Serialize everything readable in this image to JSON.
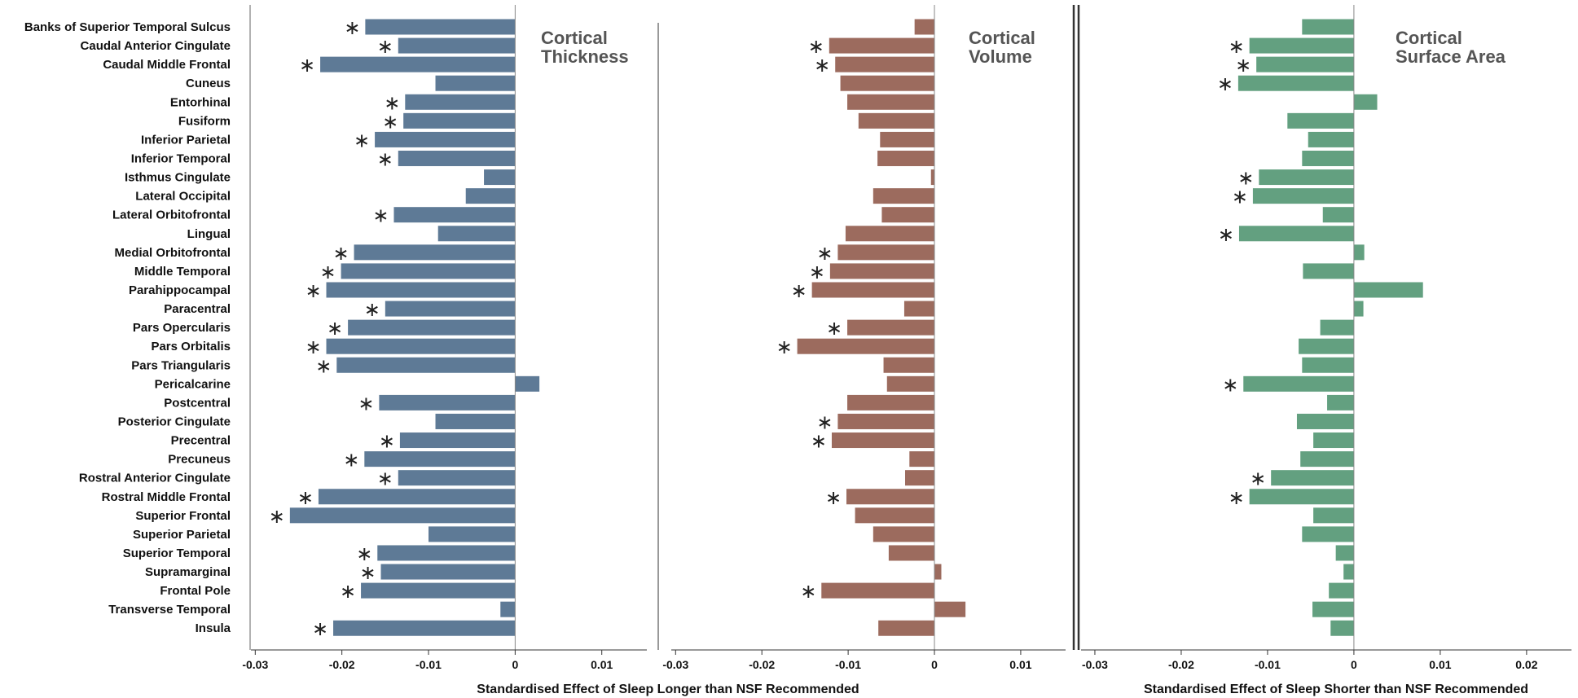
{
  "chart_data": {
    "type": "bar",
    "orientation": "horizontal",
    "categories": [
      "Banks of Superior Temporal Sulcus",
      "Caudal Anterior Cingulate",
      "Caudal Middle Frontal",
      "Cuneus",
      "Entorhinal",
      "Fusiform",
      "Inferior Parietal",
      "Inferior Temporal",
      "Isthmus Cingulate",
      "Lateral Occipital",
      "Lateral Orbitofrontal",
      "Lingual",
      "Medial Orbitofrontal",
      "Middle Temporal",
      "Parahippocampal",
      "Paracentral",
      "Pars Opercularis",
      "Pars Orbitalis",
      "Pars Triangularis",
      "Pericalcarine",
      "Postcentral",
      "Posterior Cingulate",
      "Precentral",
      "Precuneus",
      "Rostral Anterior Cingulate",
      "Rostral Middle Frontal",
      "Superior Frontal",
      "Superior Parietal",
      "Superior Temporal",
      "Supramarginal",
      "Frontal Pole",
      "Transverse Temporal",
      "Insula"
    ],
    "significance_marker": "∗",
    "panels": [
      {
        "title": [
          "Cortical",
          "Thickness"
        ],
        "color": "#5e7a96",
        "xlim": [
          -0.0305,
          0.0152
        ],
        "xticks": [
          -0.03,
          -0.02,
          -0.01,
          0,
          0.01
        ],
        "tick_labels": [
          "-0.03",
          "-0.02",
          "-0.01",
          "0",
          "0.01"
        ],
        "values": [
          -0.0173,
          -0.0135,
          -0.0225,
          -0.0092,
          -0.0127,
          -0.0129,
          -0.0162,
          -0.0135,
          -0.0036,
          -0.0057,
          -0.014,
          -0.0089,
          -0.0186,
          -0.0201,
          -0.0218,
          -0.015,
          -0.0193,
          -0.0218,
          -0.0206,
          0.0028,
          -0.0157,
          -0.0092,
          -0.0133,
          -0.0174,
          -0.0135,
          -0.0227,
          -0.026,
          -0.01,
          -0.0159,
          -0.0155,
          -0.0178,
          -0.0017,
          -0.021
        ],
        "significant": [
          true,
          true,
          true,
          false,
          true,
          true,
          true,
          true,
          false,
          false,
          true,
          false,
          true,
          true,
          true,
          true,
          true,
          true,
          true,
          false,
          true,
          false,
          true,
          true,
          true,
          true,
          true,
          false,
          true,
          true,
          true,
          false,
          true
        ]
      },
      {
        "title": [
          "Cortical",
          "Volume"
        ],
        "color": "#9c6b5e",
        "xlim": [
          -0.0305,
          0.0152
        ],
        "xticks": [
          -0.03,
          -0.02,
          -0.01,
          0,
          0.01
        ],
        "tick_labels": [
          "-0.03",
          "-0.02",
          "-0.01",
          "0",
          "0.01"
        ],
        "values": [
          -0.0023,
          -0.0122,
          -0.0115,
          -0.0109,
          -0.0101,
          -0.0088,
          -0.0063,
          -0.0066,
          -0.0004,
          -0.0071,
          -0.0061,
          -0.0103,
          -0.0112,
          -0.0121,
          -0.0142,
          -0.0035,
          -0.0101,
          -0.0159,
          -0.0059,
          -0.0055,
          -0.0101,
          -0.0112,
          -0.0119,
          -0.0029,
          -0.0034,
          -0.0102,
          -0.0092,
          -0.0071,
          -0.0053,
          0.0008,
          -0.0131,
          0.0036,
          -0.0065
        ],
        "significant": [
          false,
          true,
          true,
          false,
          false,
          false,
          false,
          false,
          false,
          false,
          false,
          false,
          true,
          true,
          true,
          false,
          true,
          true,
          false,
          false,
          false,
          true,
          true,
          false,
          false,
          true,
          false,
          false,
          false,
          false,
          true,
          false,
          false
        ]
      },
      {
        "title": [
          "Cortical",
          "Surface Area"
        ],
        "color": "#63a080",
        "xlim": [
          -0.0316,
          0.0252
        ],
        "xticks": [
          -0.03,
          -0.02,
          -0.01,
          0,
          0.01,
          0.02
        ],
        "tick_labels": [
          "-0.03",
          "-0.02",
          "-0.01",
          "0",
          "0.01",
          "0.02"
        ],
        "values": [
          -0.006,
          -0.0121,
          -0.0113,
          -0.0134,
          0.0027,
          -0.0077,
          -0.0053,
          -0.006,
          -0.011,
          -0.0117,
          -0.0036,
          -0.0133,
          0.0012,
          -0.0059,
          0.008,
          0.0011,
          -0.0039,
          -0.0064,
          -0.006,
          -0.0128,
          -0.0031,
          -0.0066,
          -0.0047,
          -0.0062,
          -0.0096,
          -0.0121,
          -0.0047,
          -0.006,
          -0.0021,
          -0.0012,
          -0.0029,
          -0.0048,
          -0.0027
        ],
        "significant": [
          false,
          true,
          true,
          true,
          false,
          false,
          false,
          false,
          true,
          true,
          false,
          true,
          false,
          false,
          false,
          false,
          false,
          false,
          false,
          true,
          false,
          false,
          false,
          false,
          true,
          true,
          false,
          false,
          false,
          false,
          false,
          false,
          false
        ]
      }
    ],
    "xlabels": [
      "Standardised Effect of Sleep Longer than NSF Recommended",
      "Standardised Effect of Sleep Shorter than NSF Recommended"
    ]
  }
}
